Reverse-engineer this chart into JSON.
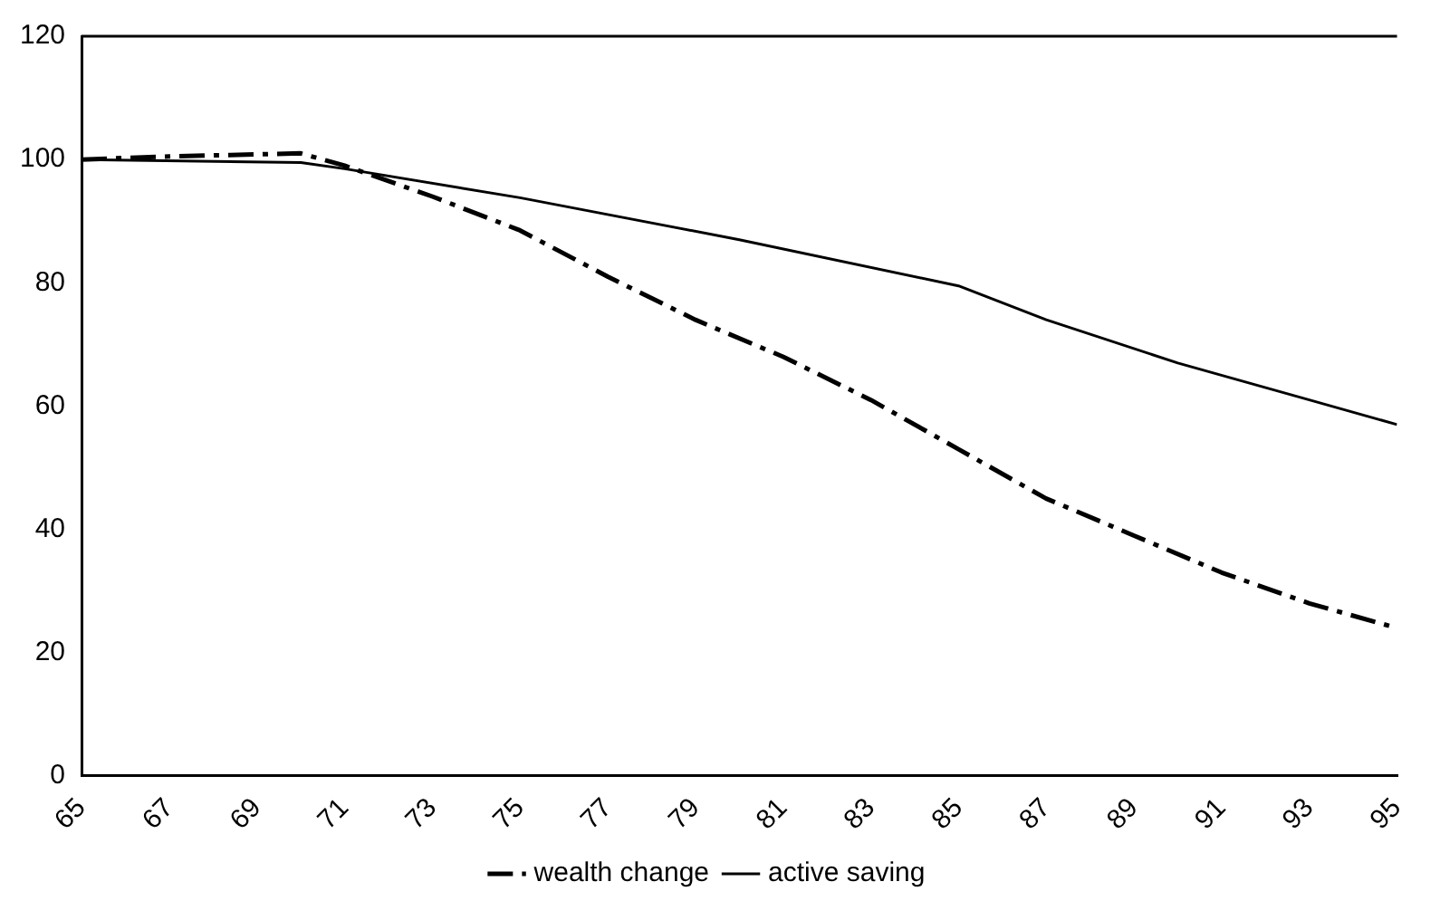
{
  "chart_data": {
    "type": "line",
    "xlim": [
      65,
      95
    ],
    "xticks": [
      65,
      67,
      69,
      71,
      73,
      75,
      77,
      79,
      81,
      83,
      85,
      87,
      89,
      91,
      93,
      95
    ],
    "ylim": [
      0,
      120
    ],
    "yticks": [
      0,
      20,
      40,
      60,
      80,
      100,
      120
    ],
    "grid": false,
    "legend": "bottom",
    "marker": "none",
    "series": [
      {
        "name": "wealth change",
        "color": "#000000",
        "line_style": "dashed",
        "x": [
          65,
          67,
          70,
          71,
          73,
          75,
          77,
          79,
          81,
          83,
          85,
          87,
          89,
          91,
          93,
          95
        ],
        "values": [
          100,
          100.5,
          101,
          99,
          94,
          88.5,
          81,
          74,
          68,
          61,
          53,
          45,
          39,
          33,
          28,
          24
        ]
      },
      {
        "name": "active saving",
        "color": "#000000",
        "line_style": "solid",
        "x": [
          65,
          70,
          71,
          75,
          80,
          85,
          87,
          90,
          93,
          95
        ],
        "values": [
          100,
          99.5,
          98.5,
          93.8,
          87,
          79.5,
          74,
          67,
          61,
          57
        ]
      }
    ]
  }
}
